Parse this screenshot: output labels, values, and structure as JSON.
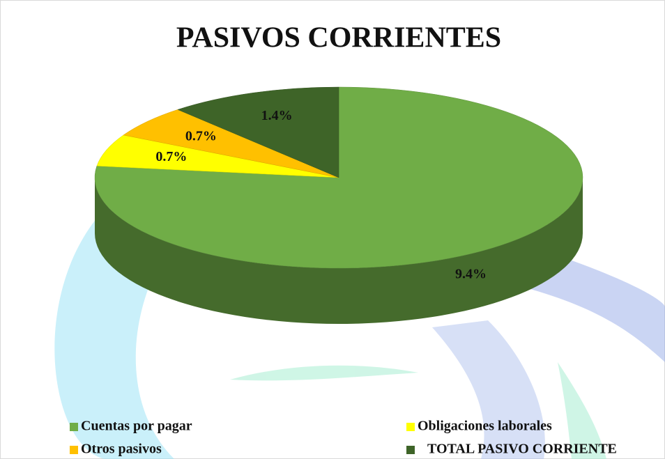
{
  "chart_data": {
    "type": "pie",
    "title": "PASIVOS CORRIENTES",
    "categories": [
      "Cuentas por pagar",
      "Obligaciones laborales",
      "Otros pasivos",
      "TOTAL PASIVO CORRIENTE"
    ],
    "values": [
      9.4,
      0.7,
      0.7,
      1.4
    ],
    "value_labels": [
      "9.4%",
      "0.7%",
      "0.7%",
      "1.4%"
    ],
    "colors": [
      "#70ad47",
      "#ffff00",
      "#ffc000",
      "#3e6428"
    ]
  }
}
